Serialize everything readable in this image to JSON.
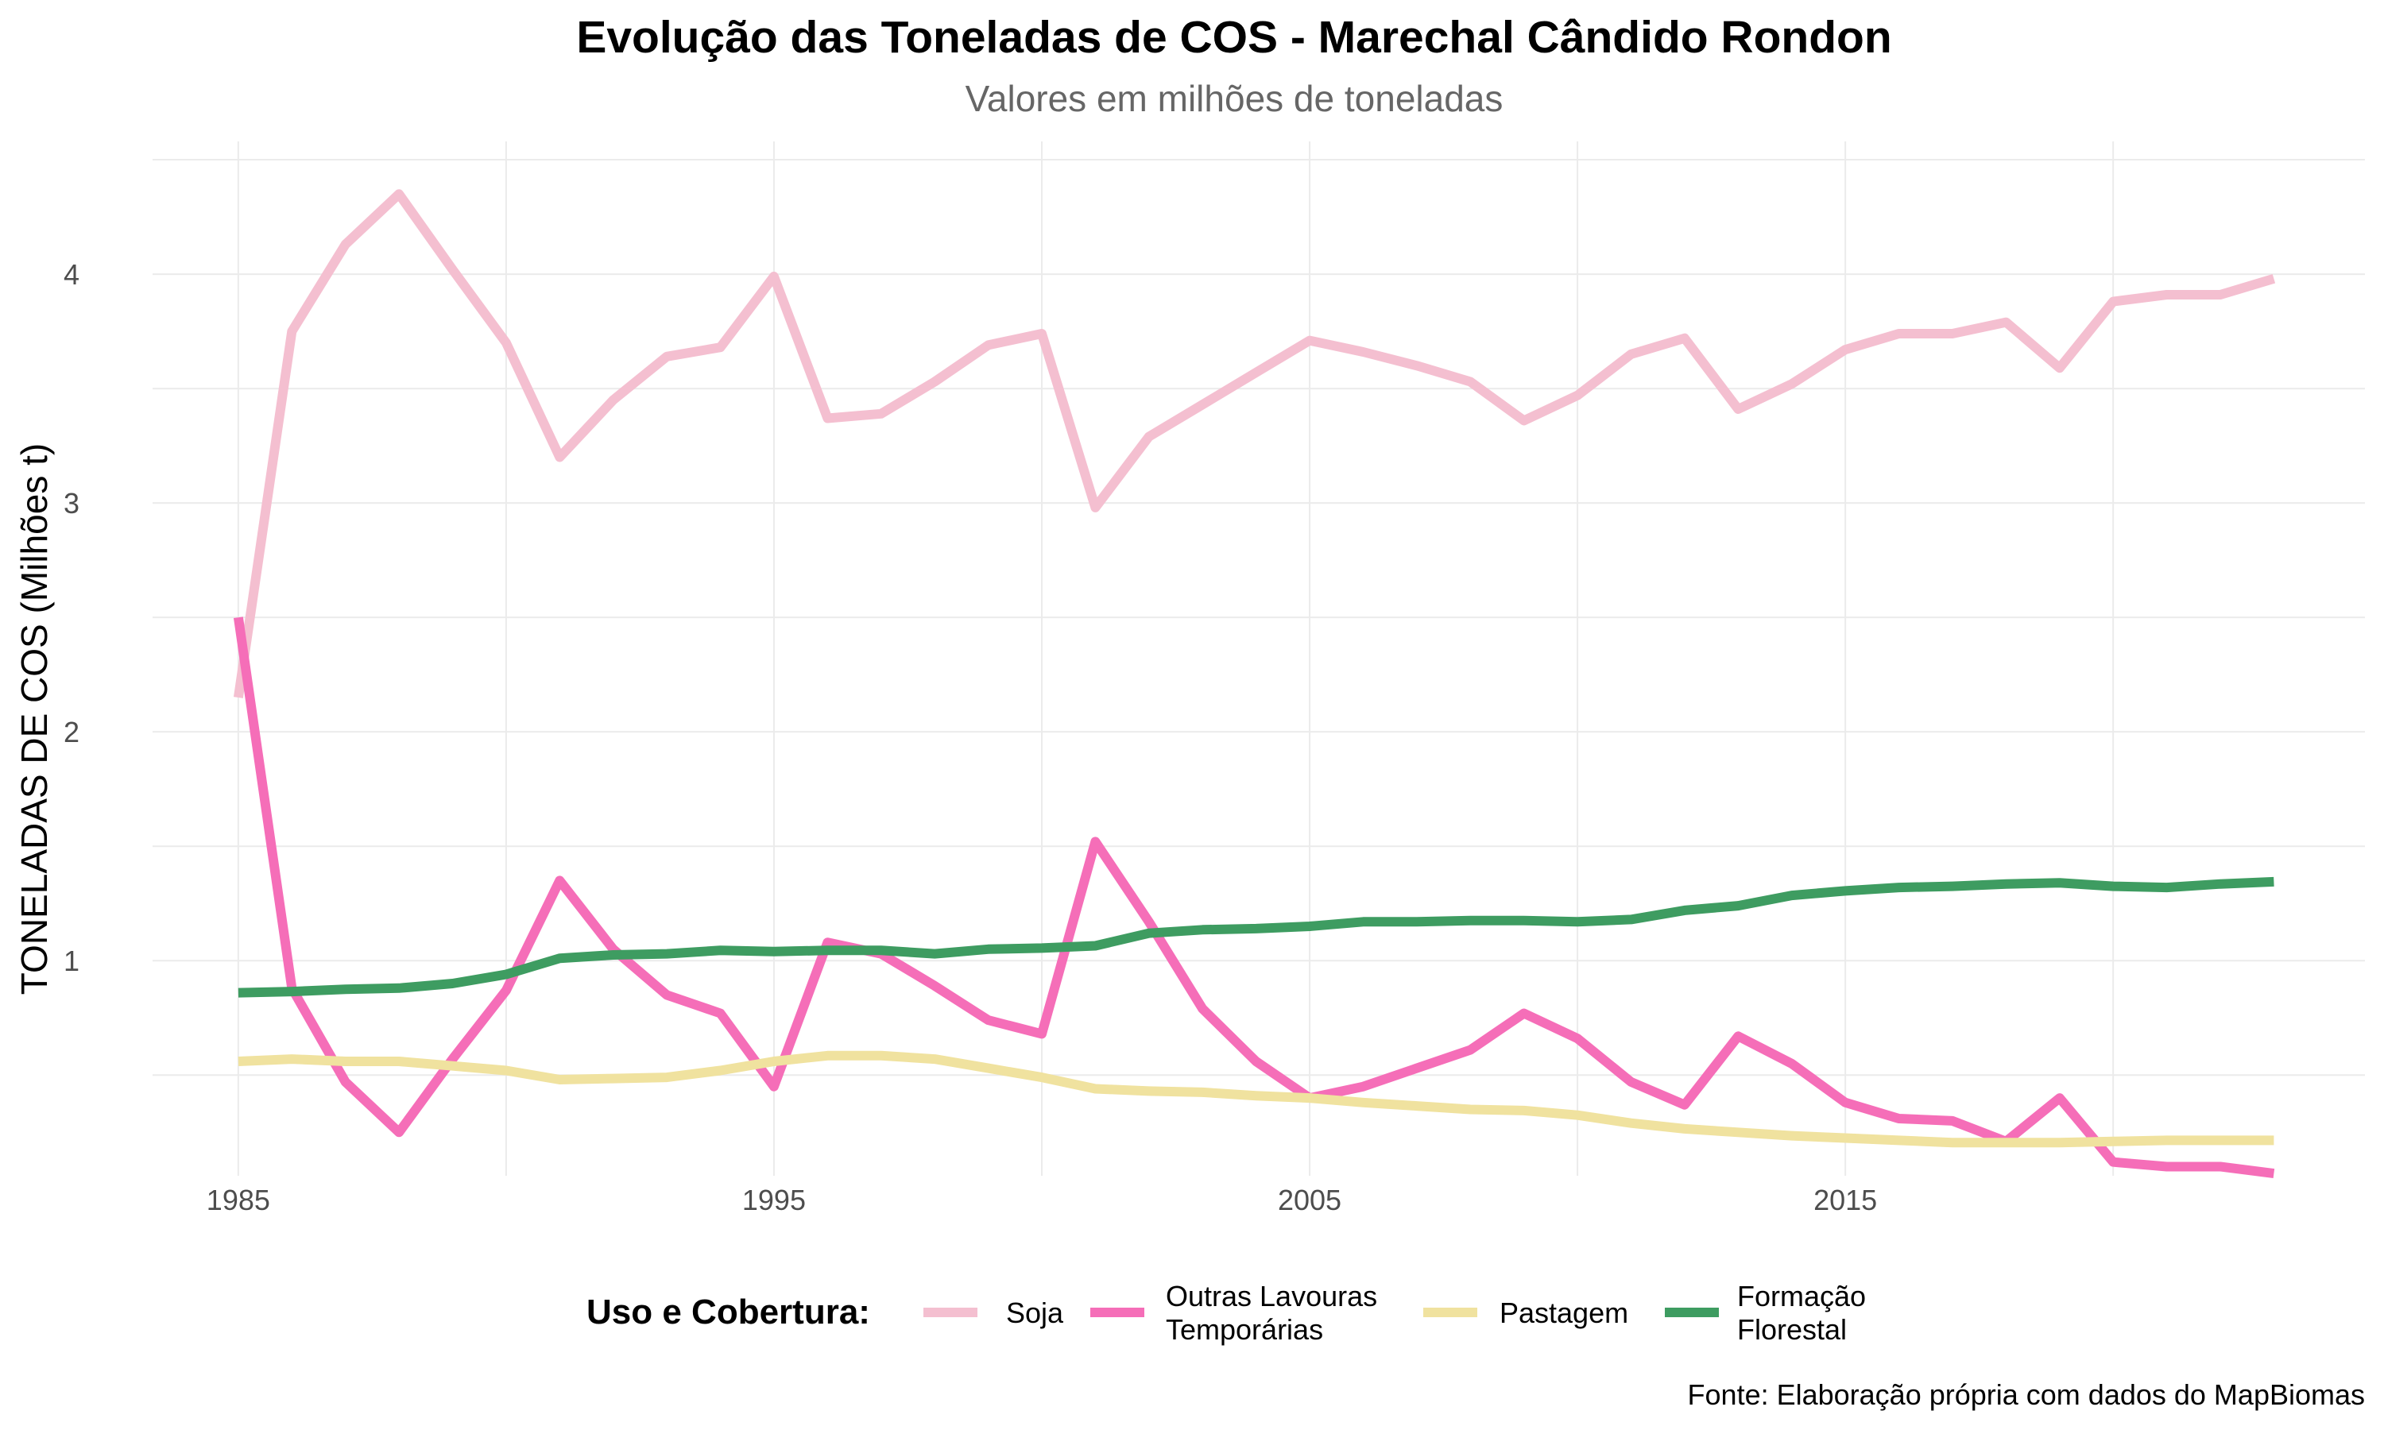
{
  "chart_data": {
    "type": "line",
    "title": "Evolução das Toneladas de COS - Marechal Cândido Rondon",
    "subtitle": "Valores em milhões de toneladas",
    "xlabel": "",
    "ylabel": "TONELADAS DE COS (Milhões t)",
    "caption": "Fonte: Elaboração própria com dados do MapBiomas",
    "x": [
      1985,
      1986,
      1987,
      1988,
      1989,
      1990,
      1991,
      1992,
      1993,
      1994,
      1995,
      1996,
      1997,
      1998,
      1999,
      2000,
      2001,
      2002,
      2003,
      2004,
      2005,
      2006,
      2007,
      2008,
      2009,
      2010,
      2011,
      2012,
      2013,
      2014,
      2015,
      2016,
      2017,
      2018,
      2019,
      2020,
      2021,
      2022,
      2023
    ],
    "xticks": [
      "1985",
      "1995",
      "2005",
      "2015"
    ],
    "yticks": [
      "1",
      "2",
      "3",
      "4"
    ],
    "xlim": [
      1983.4,
      2024.7
    ],
    "ylim": [
      0.06,
      4.58
    ],
    "grid": true,
    "legend": {
      "title": "Uso e Cobertura:",
      "position": "bottom"
    },
    "series": [
      {
        "name": "Soja",
        "label_lines": [
          "Soja"
        ],
        "color": "#f4bfd0",
        "values": [
          2.15,
          3.75,
          4.13,
          4.35,
          4.02,
          3.7,
          3.2,
          3.45,
          3.64,
          3.68,
          3.99,
          3.37,
          3.39,
          3.53,
          3.69,
          3.74,
          2.98,
          3.29,
          3.43,
          3.57,
          3.71,
          3.66,
          3.6,
          3.53,
          3.36,
          3.47,
          3.65,
          3.72,
          3.41,
          3.52,
          3.67,
          3.74,
          3.74,
          3.79,
          3.59,
          3.88,
          3.91,
          3.91,
          3.98
        ]
      },
      {
        "name": "Outras Lavouras Temporárias",
        "label_lines": [
          "Outras Lavouras",
          "Temporárias"
        ],
        "color": "#f56eb8",
        "values": [
          2.5,
          0.88,
          0.47,
          0.25,
          0.57,
          0.87,
          1.35,
          1.05,
          0.85,
          0.77,
          0.45,
          1.08,
          1.03,
          0.89,
          0.74,
          0.68,
          1.52,
          1.17,
          0.79,
          0.56,
          0.4,
          0.45,
          0.53,
          0.61,
          0.77,
          0.66,
          0.47,
          0.37,
          0.67,
          0.55,
          0.38,
          0.31,
          0.3,
          0.21,
          0.4,
          0.12,
          0.1,
          0.1,
          0.07
        ]
      },
      {
        "name": "Pastagem",
        "label_lines": [
          "Pastagem"
        ],
        "color": "#f0e29f",
        "values": [
          0.56,
          0.57,
          0.56,
          0.56,
          0.54,
          0.52,
          0.48,
          0.485,
          0.49,
          0.52,
          0.56,
          0.585,
          0.585,
          0.57,
          0.53,
          0.49,
          0.44,
          0.43,
          0.425,
          0.41,
          0.4,
          0.38,
          0.365,
          0.35,
          0.345,
          0.325,
          0.29,
          0.265,
          0.25,
          0.235,
          0.225,
          0.215,
          0.205,
          0.205,
          0.205,
          0.21,
          0.215,
          0.215,
          0.215
        ]
      },
      {
        "name": "Formação Florestal",
        "label_lines": [
          "Formação",
          "Florestal"
        ],
        "color": "#3e9c61",
        "values": [
          0.86,
          0.865,
          0.875,
          0.88,
          0.9,
          0.94,
          1.01,
          1.025,
          1.03,
          1.045,
          1.04,
          1.045,
          1.045,
          1.03,
          1.05,
          1.055,
          1.065,
          1.12,
          1.135,
          1.14,
          1.15,
          1.17,
          1.17,
          1.175,
          1.175,
          1.17,
          1.18,
          1.22,
          1.24,
          1.285,
          1.305,
          1.32,
          1.325,
          1.335,
          1.34,
          1.325,
          1.32,
          1.335,
          1.345
        ]
      }
    ]
  }
}
